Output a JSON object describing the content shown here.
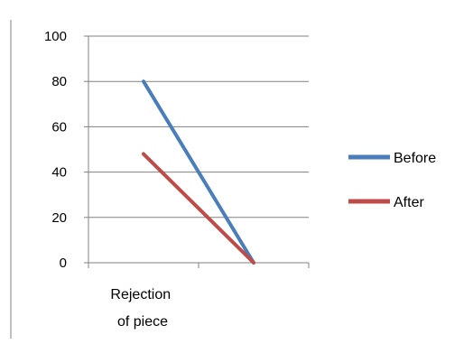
{
  "chart_data": {
    "type": "line",
    "categories": [
      "Rejection of piece",
      ""
    ],
    "x": [
      0,
      1
    ],
    "series": [
      {
        "name": "Before",
        "color": "#4a7ebb",
        "values": [
          80,
          0
        ]
      },
      {
        "name": "After",
        "color": "#be4b48",
        "values": [
          48,
          0
        ]
      }
    ],
    "yticks": [
      "100",
      "80",
      "60",
      "40",
      "20",
      "0"
    ],
    "ylim": [
      0,
      100
    ],
    "category_label_lines": [
      "Rejection",
      "of piece"
    ],
    "grid": true,
    "legend_position": "right",
    "title": "",
    "xlabel": "",
    "ylabel": ""
  }
}
